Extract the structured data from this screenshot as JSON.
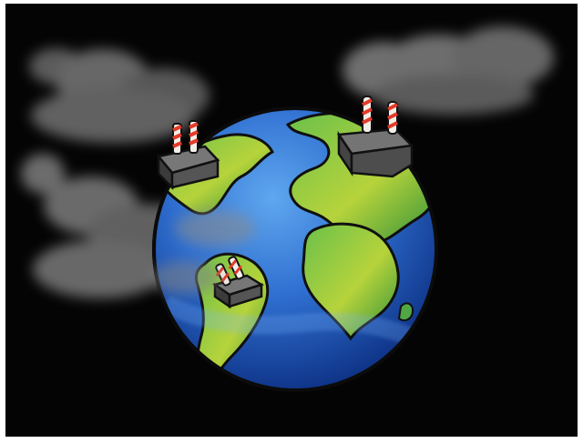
{
  "illustration": {
    "subject": "",
    "colors": {
      "space": "#050405",
      "frame": "#ffffff",
      "ocean_deep": "#123f9d",
      "ocean_light": "#4b8de0",
      "land_green": "#2f9b3f",
      "land_yellow": "#c8d93a",
      "factory_body": "#5b5b5b",
      "factory_dark": "#303030",
      "chimney_red": "#e43b2b",
      "chimney_white": "#f2efe8",
      "smoke": "#8a8a8a"
    }
  }
}
